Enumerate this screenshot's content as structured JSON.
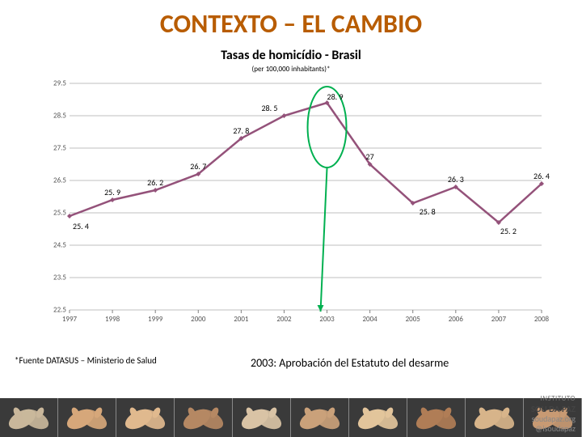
{
  "slide": {
    "title": "CONTEXTO – EL CAMBIO",
    "title_color": "#b85c00",
    "title_fontsize": 32
  },
  "chart": {
    "type": "line",
    "title": "Tasas de homicídio - Brasil",
    "title_fontsize": 16,
    "title_color": "#000000",
    "subtitle": "(per 100,000 inhabitants)*",
    "subtitle_fontsize": 9,
    "subtitle_color": "#000000",
    "x_categories": [
      "1997",
      "1998",
      "1999",
      "2000",
      "2001",
      "2002",
      "2003",
      "2004",
      "2005",
      "2006",
      "2007",
      "2008"
    ],
    "values": [
      25.4,
      25.9,
      26.2,
      26.7,
      27.8,
      28.5,
      28.9,
      27,
      25.8,
      26.3,
      25.2,
      26.4
    ],
    "data_label_fontsize": 10,
    "data_label_color": "#000000",
    "line_color": "#94527a",
    "line_width": 2.5,
    "marker_style": "diamond",
    "marker_size": 6,
    "marker_fill": "#94527a",
    "ylim": [
      22.5,
      29.5
    ],
    "ytick_step": 1,
    "yticks": [
      22.5,
      23.5,
      24.5,
      25.5,
      26.5,
      27.5,
      28.5,
      29.5
    ],
    "axis_label_fontsize": 9,
    "axis_label_color": "#555555",
    "grid_color": "#bfbfbf",
    "grid_width": 1,
    "tick_color": "#808080",
    "background_color": "#ffffff",
    "callout_ellipse": {
      "cx_index": 6,
      "ry_value_span": [
        26.9,
        29.4
      ],
      "stroke": "#00b050",
      "stroke_width": 2
    },
    "arrow": {
      "from_index": 6,
      "to": "caption",
      "color": "#00b050",
      "width": 2
    }
  },
  "footnote": {
    "text": "*Fuente DATASUS – Ministerio de Salud",
    "fontsize": 11,
    "color": "#000000"
  },
  "caption": {
    "text": "2003: Aprobación del Estatuto del desarme",
    "fontsize": 14,
    "color": "#000000"
  },
  "footer": {
    "hand_colors": [
      "#c9b79b",
      "#d6a77a",
      "#e0b98e",
      "#b58863",
      "#d9c3a5",
      "#caa17a",
      "#e2c49b",
      "#b07d56",
      "#d7b48a",
      "#c89a73"
    ],
    "skin_base": "#d9b38c",
    "inst_label": "INSTITUTO",
    "brand": "SOU DA PAZ",
    "handle1": "soudapaz.org",
    "handle2": "@isoudapaz",
    "handle_color": "#888888"
  }
}
